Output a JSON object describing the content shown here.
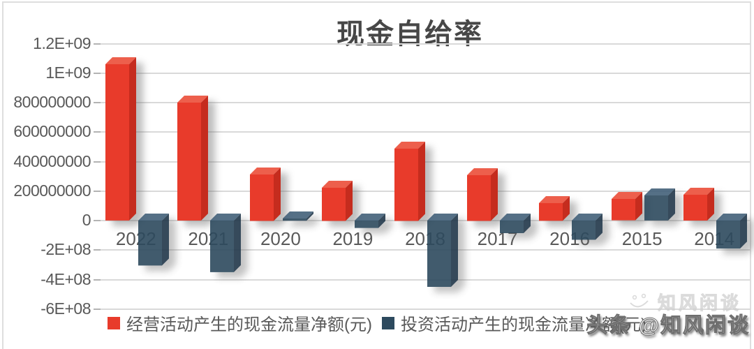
{
  "title": "现金自给率",
  "watermark": {
    "faint_text": "知风闲谈",
    "main_text": "头条 @知风闲谈"
  },
  "chart_data": {
    "type": "bar",
    "title": "现金自给率",
    "style": "3d-column",
    "grid": true,
    "legend_position": "bottom",
    "categories": [
      "2022",
      "2021",
      "2020",
      "2019",
      "2018",
      "2017",
      "2016",
      "2015",
      "2014"
    ],
    "series": [
      {
        "name": "经营活动产生的现金流量净额(元)",
        "color": "#e83b2b",
        "color_top": "#ed5f4c",
        "color_side": "#c52c1e",
        "values": [
          1060000000,
          800000000,
          315000000,
          225000000,
          490000000,
          310000000,
          120000000,
          145000000,
          175000000
        ]
      },
      {
        "name": "投资活动产生的现金流量净额(元)",
        "color": "#2d4a5e",
        "color_top": "#43617a",
        "color_side": "#21374a",
        "values": [
          -305000000,
          -350000000,
          15000000,
          -50000000,
          -450000000,
          -85000000,
          -130000000,
          170000000,
          -190000000
        ]
      }
    ],
    "ylim": [
      -600000000,
      1200000000
    ],
    "yticks": [
      {
        "label": "1.2E+09",
        "value": 1200000000
      },
      {
        "label": "1E+09",
        "value": 1000000000
      },
      {
        "label": "800000000",
        "value": 800000000
      },
      {
        "label": "600000000",
        "value": 600000000
      },
      {
        "label": "400000000",
        "value": 400000000
      },
      {
        "label": "200000000",
        "value": 200000000
      },
      {
        "label": "0",
        "value": 0
      },
      {
        "label": "-2E+08",
        "value": -200000000
      },
      {
        "label": "-4E+08",
        "value": -400000000
      },
      {
        "label": "-6E+08",
        "value": -600000000
      }
    ]
  }
}
